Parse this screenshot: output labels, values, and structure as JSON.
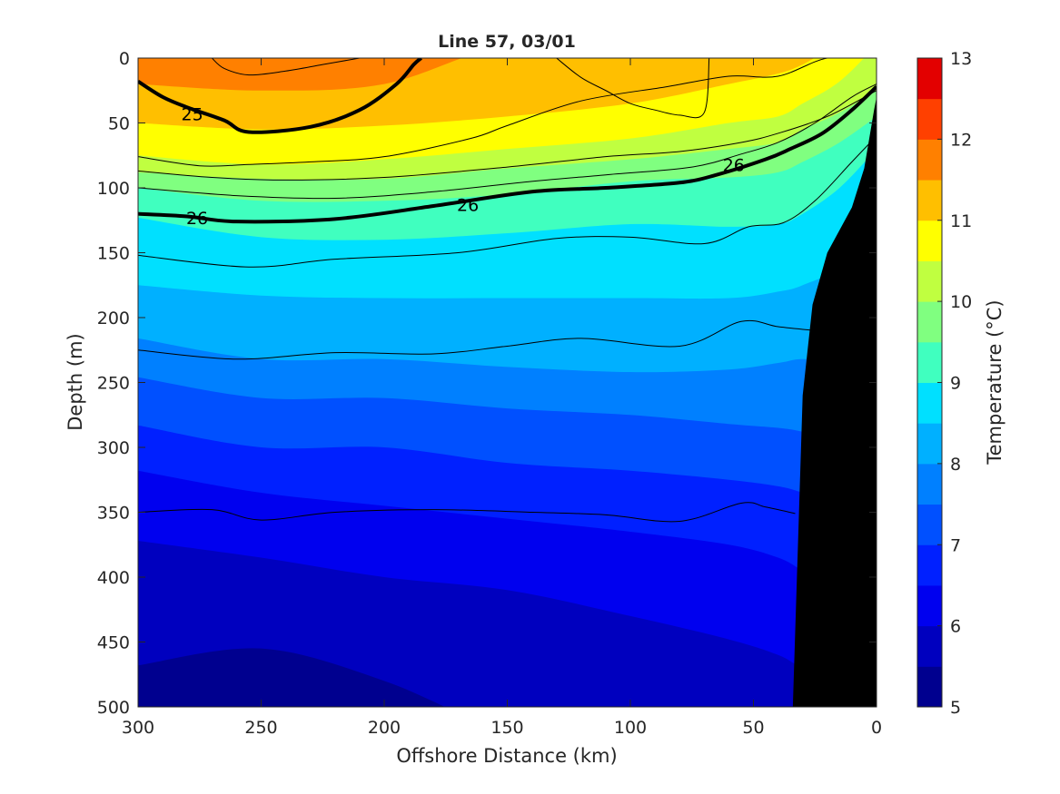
{
  "chart_data": {
    "type": "contourf",
    "title": "Line 57, 03/01",
    "xlabel": "Offshore Distance (km)",
    "ylabel": "Depth (m)",
    "colorbar_label": "Temperature (°C)",
    "xlim": [
      300,
      0
    ],
    "ylim": [
      500,
      0
    ],
    "x_reversed": true,
    "y_reversed": true,
    "xticks": [
      300,
      250,
      200,
      150,
      100,
      50,
      0
    ],
    "yticks": [
      0,
      50,
      100,
      150,
      200,
      250,
      300,
      350,
      400,
      450,
      500
    ],
    "colorbar_ticks": [
      5,
      6,
      7,
      8,
      9,
      10,
      11,
      12,
      13
    ],
    "colorbar_range": [
      5,
      13
    ],
    "temperature_levels": [
      5,
      5.5,
      6,
      6.5,
      7,
      7.5,
      8,
      8.5,
      9,
      9.5,
      10,
      10.5,
      11,
      11.5,
      12,
      12.5,
      13
    ],
    "level_colors": [
      "#00008f",
      "#0000bf",
      "#0000ef",
      "#0020ff",
      "#0050ff",
      "#0080ff",
      "#00b0ff",
      "#00e0ff",
      "#40ffbf",
      "#80ff80",
      "#c0ff40",
      "#ffff00",
      "#ffbf00",
      "#ff8000",
      "#ff4000",
      "#e30000",
      "#a80000"
    ],
    "temperature_field": {
      "x_km": [
        300,
        250,
        200,
        150,
        100,
        60,
        40,
        30,
        15,
        0
      ],
      "isotherms": [
        {
          "temp": 5.5,
          "depth_m": [
            468,
            455,
            480,
            520,
            540,
            540,
            540,
            540,
            540,
            540
          ]
        },
        {
          "temp": 6.0,
          "depth_m": [
            372,
            385,
            400,
            410,
            430,
            448,
            460,
            470,
            480,
            490
          ]
        },
        {
          "temp": 6.5,
          "depth_m": [
            318,
            335,
            345,
            355,
            365,
            375,
            385,
            395,
            410,
            420
          ]
        },
        {
          "temp": 7.0,
          "depth_m": [
            283,
            300,
            300,
            312,
            318,
            325,
            330,
            335,
            345,
            350
          ]
        },
        {
          "temp": 7.5,
          "depth_m": [
            246,
            262,
            262,
            270,
            275,
            282,
            285,
            288,
            295,
            300
          ]
        },
        {
          "temp": 8.0,
          "depth_m": [
            216,
            232,
            232,
            238,
            242,
            240,
            235,
            232,
            235,
            240
          ]
        },
        {
          "temp": 8.5,
          "depth_m": [
            175,
            183,
            185,
            185,
            185,
            185,
            180,
            175,
            160,
            120
          ]
        },
        {
          "temp": 9.0,
          "depth_m": [
            123,
            138,
            140,
            135,
            128,
            130,
            128,
            120,
            100,
            70
          ]
        },
        {
          "temp": 9.5,
          "depth_m": [
            100,
            110,
            110,
            105,
            95,
            92,
            88,
            80,
            65,
            45
          ]
        },
        {
          "temp": 10.0,
          "depth_m": [
            88,
            93,
            93,
            85,
            78,
            70,
            65,
            55,
            42,
            25
          ]
        },
        {
          "temp": 10.5,
          "depth_m": [
            75,
            82,
            78,
            70,
            62,
            50,
            45,
            35,
            18,
            -10
          ]
        },
        {
          "temp": 11.0,
          "depth_m": [
            50,
            55,
            52,
            45,
            35,
            20,
            12,
            5,
            -10,
            -10
          ]
        },
        {
          "temp": 11.5,
          "depth_m": [
            20,
            25,
            20,
            -10,
            -10,
            -10,
            -10,
            -10,
            -10,
            -10
          ]
        },
        {
          "temp": 12.0,
          "depth_m": [
            -10,
            -10,
            -10,
            -10,
            -10,
            -10,
            -10,
            -10,
            -10,
            -10
          ]
        }
      ]
    },
    "bottom_topography": {
      "x_km": [
        34,
        32,
        30,
        26,
        20,
        10,
        5,
        1,
        0
      ],
      "depth_m": [
        500,
        380,
        260,
        190,
        150,
        115,
        85,
        40,
        30
      ]
    },
    "density_contours": [
      {
        "label": "25",
        "bold": true,
        "x_km": [
          300,
          290,
          280,
          265,
          255,
          230,
          210,
          195,
          188,
          185
        ],
        "depth_m": [
          18,
          30,
          38,
          48,
          57,
          53,
          40,
          20,
          5,
          0
        ]
      },
      {
        "label": "26",
        "bold": true,
        "x_km": [
          300,
          280,
          260,
          220,
          180,
          140,
          110,
          80,
          65,
          45,
          35,
          22,
          10,
          0
        ],
        "depth_m": [
          120,
          122,
          126,
          124,
          114,
          103,
          100,
          96,
          90,
          78,
          70,
          58,
          40,
          22
        ]
      },
      {
        "label": "",
        "bold": false,
        "x_km": [
          300,
          275,
          255,
          230,
          200,
          165,
          150,
          120,
          85,
          60,
          40,
          20,
          0
        ],
        "depth_m": [
          76,
          83,
          82,
          80,
          76,
          62,
          52,
          33,
          22,
          14,
          14,
          0,
          0
        ]
      },
      {
        "label": "",
        "bold": false,
        "x_km": [
          300,
          270,
          240,
          200,
          150,
          110,
          80,
          55,
          40,
          20,
          0
        ],
        "depth_m": [
          87,
          92,
          94,
          92,
          84,
          76,
          72,
          65,
          58,
          45,
          25
        ]
      },
      {
        "label": "",
        "bold": false,
        "x_km": [
          300,
          260,
          220,
          180,
          140,
          110,
          75,
          55,
          40,
          25,
          10,
          0
        ],
        "depth_m": [
          100,
          106,
          108,
          103,
          95,
          90,
          84,
          74,
          65,
          50,
          30,
          20
        ]
      },
      {
        "label": "",
        "bold": false,
        "x_km": [
          300,
          255,
          220,
          170,
          130,
          100,
          70,
          52,
          38,
          25,
          10,
          0
        ],
        "depth_m": [
          152,
          161,
          155,
          150,
          139,
          138,
          143,
          130,
          127,
          110,
          80,
          60
        ]
      },
      {
        "label": "",
        "bold": false,
        "x_km": [
          300,
          260,
          220,
          180,
          150,
          120,
          80,
          55,
          40,
          25
        ],
        "depth_m": [
          225,
          232,
          227,
          228,
          222,
          216,
          222,
          203,
          207,
          210
        ]
      },
      {
        "label": "",
        "bold": false,
        "x_km": [
          300,
          270,
          250,
          220,
          180,
          140,
          110,
          80,
          55,
          45,
          33
        ],
        "depth_m": [
          350,
          348,
          356,
          350,
          348,
          350,
          352,
          357,
          343,
          346,
          351
        ]
      },
      {
        "label": "",
        "bold": false,
        "x_km": [
          270,
          265,
          255,
          240,
          225,
          210
        ],
        "depth_m": [
          0,
          8,
          13,
          10,
          5,
          0
        ]
      },
      {
        "label": "",
        "bold": false,
        "x_km": [
          130,
          120,
          110,
          100,
          90,
          80,
          70,
          68
        ],
        "depth_m": [
          0,
          15,
          25,
          35,
          40,
          44,
          42,
          0
        ]
      }
    ],
    "contour_labels": [
      {
        "text": "25",
        "x_km": 278,
        "depth_m": 43
      },
      {
        "text": "26",
        "x_km": 276,
        "depth_m": 123
      },
      {
        "text": "26",
        "x_km": 166,
        "depth_m": 113
      },
      {
        "text": "26",
        "x_km": 58,
        "depth_m": 82
      }
    ]
  }
}
